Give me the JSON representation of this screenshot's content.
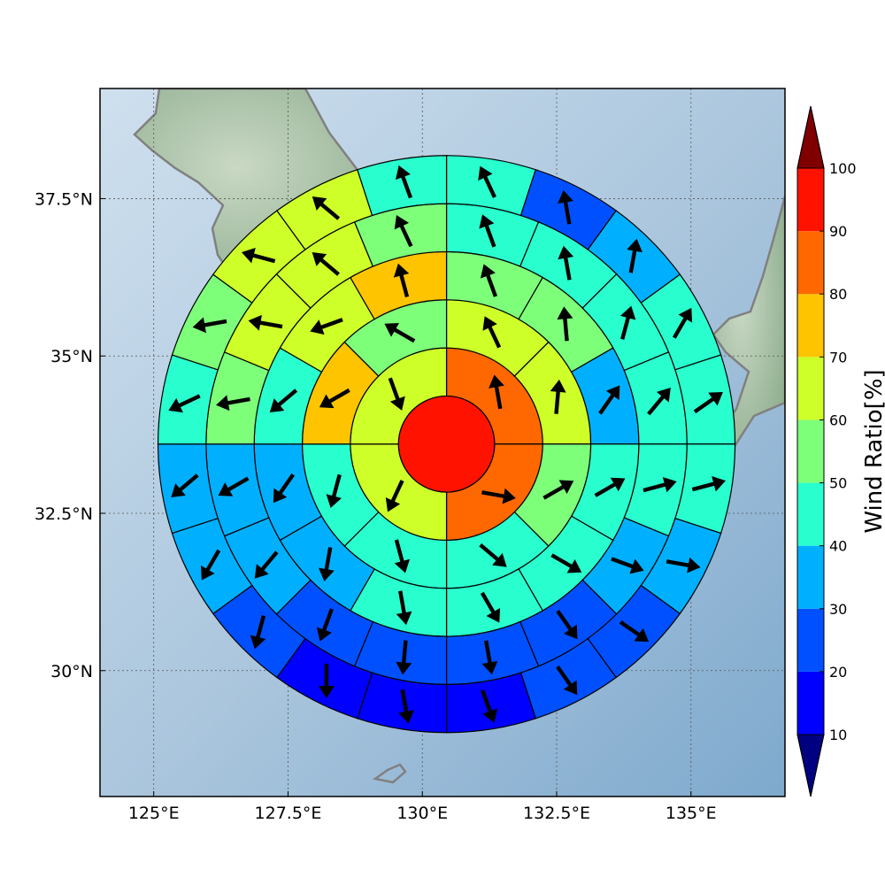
{
  "chart_data": {
    "type": "heatmap",
    "subtype": "polar-sector-wind-map",
    "title": "",
    "map_extent": {
      "lon": [
        124.0,
        136.75
      ],
      "lat": [
        28.0,
        39.25
      ]
    },
    "x_ticks": [
      {
        "value": 125.0,
        "label": "125°E"
      },
      {
        "value": 127.5,
        "label": "127.5°E"
      },
      {
        "value": 130.0,
        "label": "130°E"
      },
      {
        "value": 132.5,
        "label": "132.5°E"
      },
      {
        "value": 135.0,
        "label": "135°E"
      }
    ],
    "y_ticks": [
      {
        "value": 30.0,
        "label": "30°N"
      },
      {
        "value": 32.5,
        "label": "32.5°N"
      },
      {
        "value": 35.0,
        "label": "35°N"
      },
      {
        "value": 37.5,
        "label": "37.5°N"
      }
    ],
    "grid": true,
    "center": {
      "lon": 130.45,
      "lat": 33.6
    },
    "rings": [
      {
        "r_inner": 0,
        "r_outer": 1,
        "sectors": 1
      },
      {
        "r_inner": 1,
        "r_outer": 2,
        "sectors": 4
      },
      {
        "r_inner": 2,
        "r_outer": 3,
        "sectors": 8
      },
      {
        "r_inner": 3,
        "r_outer": 4,
        "sectors": 12
      },
      {
        "r_inner": 4,
        "r_outer": 5,
        "sectors": 16
      },
      {
        "r_inner": 5,
        "r_outer": 6,
        "sectors": 20
      }
    ],
    "values": [
      [
        95
      ],
      [
        85,
        85,
        63,
        65
      ],
      [
        63,
        65,
        55,
        45,
        45,
        45,
        73,
        55
      ],
      [
        55,
        58,
        35,
        45,
        45,
        45,
        45,
        38,
        35,
        45,
        68,
        73
      ],
      [
        45,
        45,
        45,
        45,
        45,
        35,
        25,
        25,
        25,
        25,
        35,
        35,
        55,
        65,
        65,
        55
      ],
      [
        45,
        25,
        35,
        45,
        45,
        45,
        35,
        25,
        25,
        15,
        15,
        15,
        25,
        35,
        35,
        45,
        55,
        65,
        65,
        45
      ]
    ],
    "wind_arrow_angles_deg": [
      [],
      [
        -10,
        100,
        205,
        160
      ],
      [
        -25,
        5,
        60,
        130,
        165,
        195,
        240,
        300
      ],
      [
        -20,
        -5,
        35,
        60,
        120,
        150,
        170,
        190,
        215,
        230,
        250,
        -15
      ],
      [
        -20,
        -10,
        15,
        40,
        75,
        110,
        145,
        170,
        185,
        200,
        220,
        240,
        260,
        280,
        310,
        335
      ],
      [
        -25,
        -10,
        10,
        30,
        55,
        75,
        100,
        125,
        145,
        160,
        170,
        180,
        195,
        210,
        230,
        245,
        260,
        285,
        310,
        340
      ]
    ],
    "colorbar": {
      "label": "Wind Ratio[%]",
      "ticks": [
        "10",
        "20",
        "30",
        "40",
        "50",
        "60",
        "70",
        "80",
        "90",
        "100"
      ],
      "bounds": [
        10,
        20,
        30,
        40,
        50,
        60,
        70,
        80,
        90,
        100
      ],
      "colors": [
        "#0000ff",
        "#0050ff",
        "#00b0ff",
        "#29ffce",
        "#7dff7a",
        "#ceff29",
        "#ffc400",
        "#ff6800",
        "#ff1300"
      ],
      "under_color": "#000080",
      "over_color": "#800000",
      "extend": "both"
    },
    "coastline_color": "#808080"
  }
}
